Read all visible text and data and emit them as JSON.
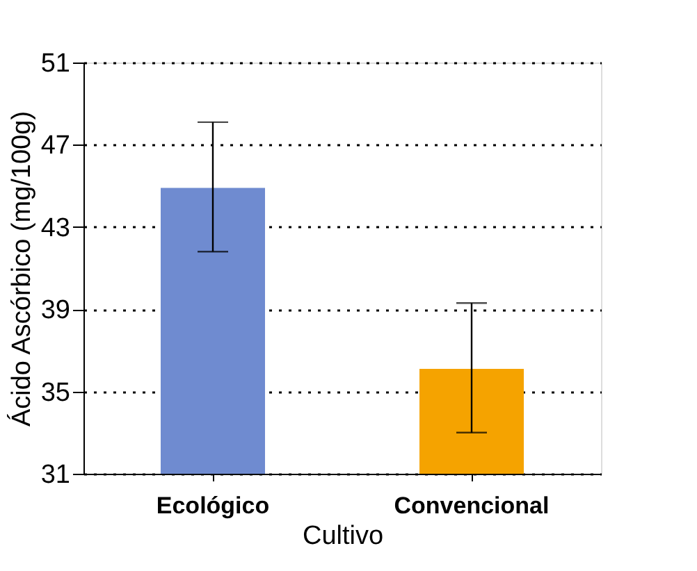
{
  "chart_data": {
    "type": "bar",
    "xlabel": "Cultivo",
    "ylabel": "Ácido Ascórbico (mg/100g)",
    "categories": [
      "Ecológico",
      "Convencional"
    ],
    "values": [
      44.9,
      36.1
    ],
    "colors": [
      "#6f8bd0",
      "#f5a300"
    ],
    "errors": [
      [
        41.8,
        48.1
      ],
      [
        33.0,
        39.3
      ]
    ],
    "ylim": [
      31,
      51
    ],
    "yticks": [
      31,
      35,
      39,
      43,
      47,
      51
    ],
    "grid": "y"
  }
}
